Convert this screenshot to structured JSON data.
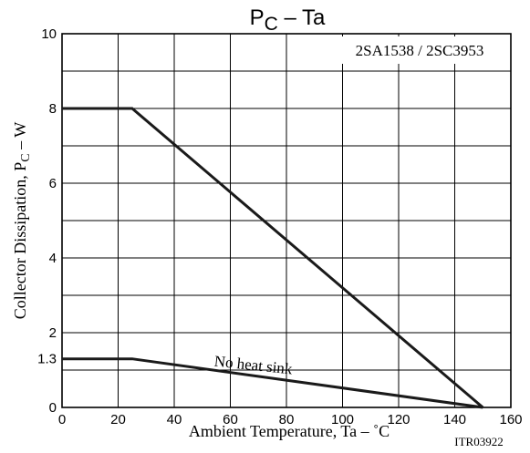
{
  "chart_data": {
    "type": "line",
    "title": {
      "main": "P",
      "sub": "C",
      "suffix": " – Ta"
    },
    "device_label": "2SA1538 / 2SC3953",
    "xlabel": "Ambient Temperature, Ta  –  ˚C",
    "ylabel": {
      "main": "Collector Dissipation, P",
      "sub": "C",
      "suffix": "  –  W"
    },
    "code": "ITR03922",
    "xlim": [
      0,
      160
    ],
    "ylim": [
      0,
      10
    ],
    "x_ticks": [
      0,
      20,
      40,
      60,
      80,
      100,
      120,
      140,
      160
    ],
    "y_ticks": [
      0,
      1.3,
      2,
      4,
      6,
      8,
      10
    ],
    "y_tick_labels": [
      "0",
      "1.3",
      "2",
      "4",
      "6",
      "8",
      "10"
    ],
    "x_gridlines": [
      0,
      20,
      40,
      60,
      80,
      100,
      120,
      140,
      160
    ],
    "y_gridlines": [
      0,
      1,
      2,
      3,
      4,
      5,
      6,
      7,
      8,
      9,
      10
    ],
    "grid": true,
    "series": [
      {
        "points": [
          [
            0,
            8
          ],
          [
            25,
            8
          ],
          [
            150,
            0
          ]
        ]
      },
      {
        "points": [
          [
            0,
            1.3
          ],
          [
            25,
            1.3
          ],
          [
            150,
            0
          ]
        ]
      }
    ],
    "annotations": [
      {
        "text": "No heat sink",
        "x": 68,
        "y": 1.0
      }
    ]
  }
}
